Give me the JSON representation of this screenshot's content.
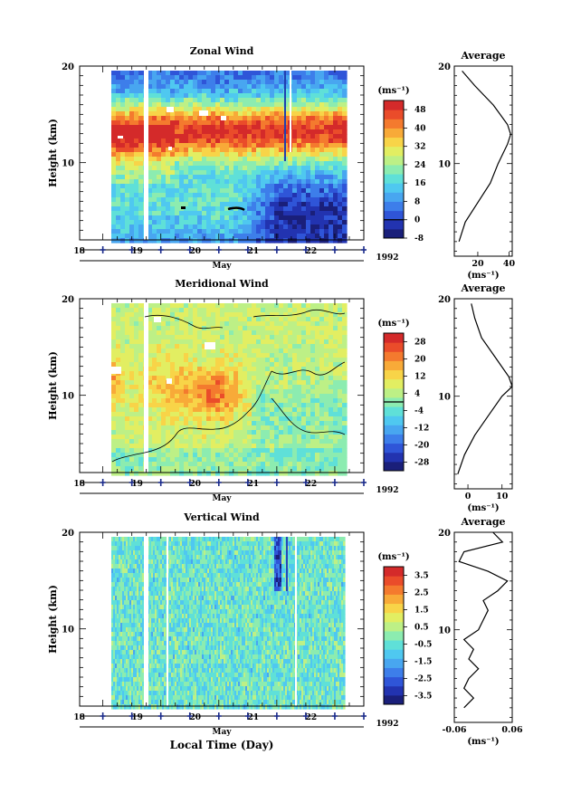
{
  "chart_data": [
    {
      "type": "heatmap",
      "title": "Zonal Wind",
      "ylabel": "Height (km)",
      "xlabel": "May",
      "year": "1992",
      "ylim": [
        2,
        20
      ],
      "xlim": [
        17.6,
        22.5
      ],
      "day_ticks": [
        "18",
        "19",
        "20",
        "21",
        "22"
      ],
      "y_ticks": [
        "20",
        "10"
      ],
      "colorbar": {
        "unit": "(ms⁻¹)",
        "min": -8,
        "max": 52,
        "labels": [
          "48",
          "40",
          "32",
          "24",
          "16",
          "8",
          "0",
          "-8"
        ],
        "contour_at": 0
      },
      "profile": {
        "title": "Average",
        "xlabel": "(ms⁻¹)",
        "x_ticks": [
          "20",
          "40"
        ],
        "xlim": [
          5,
          42
        ],
        "y_ticks": [
          "20",
          "10"
        ],
        "heights": [
          2,
          4,
          6,
          8,
          10,
          12,
          13,
          14,
          16,
          18,
          19.5
        ],
        "values": [
          8,
          12,
          20,
          28,
          33,
          39,
          41,
          39,
          30,
          18,
          10
        ]
      }
    },
    {
      "type": "heatmap",
      "title": "Meridional Wind",
      "ylabel": "Height (km)",
      "xlabel": "May",
      "year": "1992",
      "ylim": [
        2,
        20
      ],
      "xlim": [
        17.6,
        22.5
      ],
      "day_ticks": [
        "18",
        "19",
        "20",
        "21",
        "22"
      ],
      "y_ticks": [
        "20",
        "10"
      ],
      "colorbar": {
        "unit": "(ms⁻¹)",
        "min": -32,
        "max": 32,
        "labels": [
          "28",
          "20",
          "12",
          "4",
          "-4",
          "-12",
          "-20",
          "-28"
        ],
        "contour_at": 0
      },
      "profile": {
        "title": "Average",
        "xlabel": "(ms⁻¹)",
        "x_ticks": [
          "0",
          "10"
        ],
        "xlim": [
          -4,
          13
        ],
        "y_ticks": [
          "20",
          "10"
        ],
        "heights": [
          2,
          4,
          6,
          8,
          10,
          11,
          12,
          14,
          16,
          18,
          19.5
        ],
        "values": [
          -3,
          -1,
          2,
          6,
          10,
          13,
          12,
          8,
          4,
          2,
          1
        ]
      }
    },
    {
      "type": "heatmap",
      "title": "Vertical Wind",
      "ylabel": "Height (km)",
      "xlabel": "Local Time (Day)",
      "year": "1992",
      "ylim": [
        2,
        20
      ],
      "xlim": [
        17.6,
        22.5
      ],
      "day_ticks": [
        "18",
        "19",
        "20",
        "21",
        "22"
      ],
      "y_ticks": [
        "20",
        "10"
      ],
      "colorbar": {
        "unit": "(ms⁻¹)",
        "min": -4,
        "max": 4,
        "labels": [
          "3.5",
          "2.5",
          "1.5",
          "0.5",
          "-0.5",
          "-1.5",
          "-2.5",
          "-3.5"
        ],
        "contour_at": null
      },
      "profile": {
        "title": "Average",
        "xlabel": "(ms⁻¹)",
        "x_ticks": [
          "-0.06",
          "0.06"
        ],
        "xlim": [
          -0.06,
          0.06
        ],
        "y_ticks": [
          "20",
          "10"
        ],
        "heights": [
          2,
          3,
          4,
          5,
          6,
          7,
          8,
          9,
          10,
          11,
          12,
          13,
          14,
          15,
          16,
          17,
          18,
          19,
          20
        ],
        "values": [
          -0.04,
          -0.02,
          -0.04,
          -0.03,
          -0.01,
          -0.03,
          -0.02,
          -0.04,
          -0.01,
          0.0,
          0.01,
          0.0,
          0.03,
          0.05,
          0.01,
          -0.05,
          -0.04,
          0.04,
          0.02
        ]
      }
    }
  ],
  "footer": {
    "month": "May",
    "year": "1992"
  }
}
